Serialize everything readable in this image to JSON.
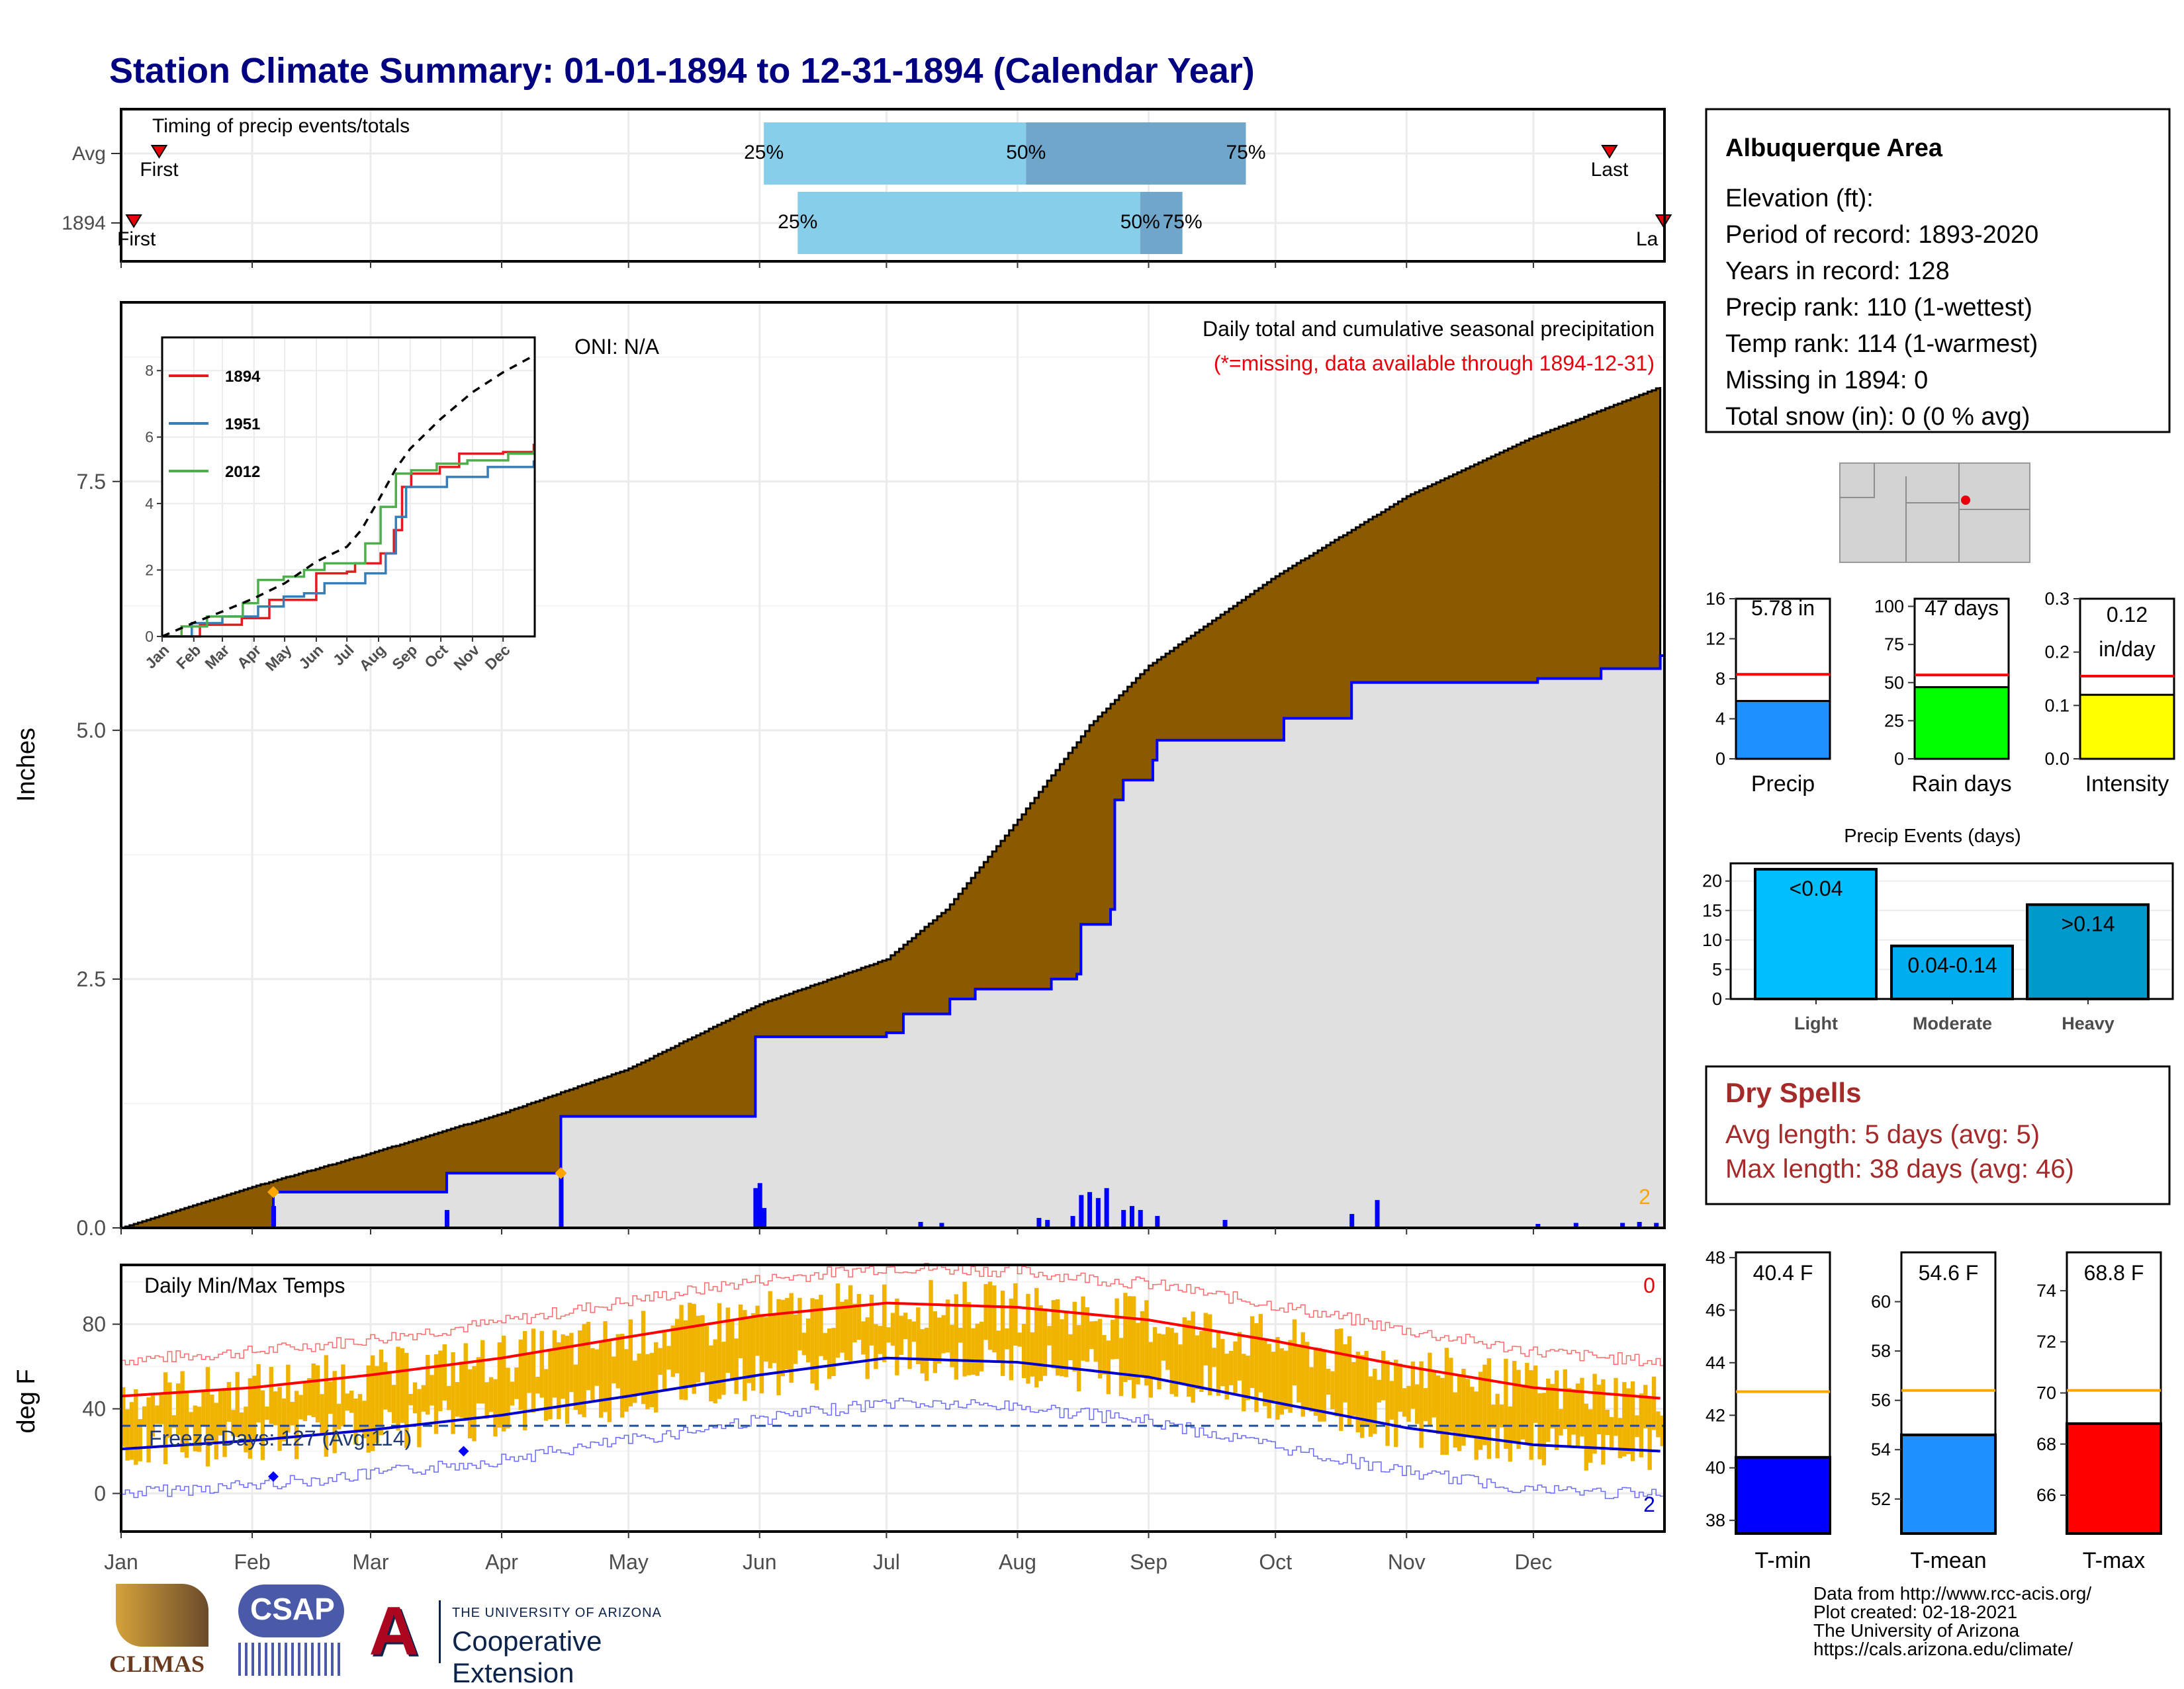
{
  "title": "Station Climate Summary: 01-01-1894 to 12-31-1894 (Calendar Year)",
  "months": [
    "Jan",
    "Feb",
    "Mar",
    "Apr",
    "May",
    "Jun",
    "Jul",
    "Aug",
    "Sep",
    "Oct",
    "Nov",
    "Dec"
  ],
  "timing": {
    "title": "Timing of precip events/totals",
    "row_labels": [
      "Avg",
      "1894"
    ],
    "first_label": "First",
    "last_label": "Last",
    "last_label_cut": "La",
    "avg": {
      "first_doy": 10,
      "p25_doy": 153,
      "p50_doy": 215,
      "p75_doy": 267,
      "last_doy": 353
    },
    "year": {
      "first_doy": 4,
      "p25_doy": 161,
      "p50_doy": 242,
      "p75_doy": 252,
      "last_doy": 365
    },
    "pct_labels": [
      "25%",
      "50%",
      "75%"
    ],
    "colors": {
      "light": "#87ceeb",
      "dark": "#6fa6c9"
    }
  },
  "station": {
    "name": "Albuquerque Area",
    "lines": [
      "Elevation (ft):",
      "Period of record: 1893-2020",
      "Years in record: 128",
      "Precip rank: 110 (1-wettest)",
      "Temp rank: 114 (1-warmest)",
      "Missing in 1894: 0",
      "Total snow (in): 0 (0 % avg)"
    ]
  },
  "dry_spells": {
    "title": "Dry Spells",
    "line1": "Avg length: 5 days (avg: 5)",
    "line2": "Max length: 38 days (avg: 46)",
    "color": "#a52a2a"
  },
  "credits": [
    "Data from http://www.rcc-acis.org/",
    "Plot created: 02-18-2021",
    "The University of Arizona",
    "https://cals.arizona.edu/climate/"
  ],
  "logos": {
    "climas": "CLIMAS",
    "csap": "CSAP",
    "ua_line1": "THE UNIVERSITY OF ARIZONA",
    "ua_line2": "Cooperative Extension"
  },
  "chart_data": [
    {
      "id": "precip-main",
      "type": "area",
      "title": "Daily total and cumulative seasonal precipitation",
      "subtitle": "(*=missing, data available through 1894-12-31)",
      "oni": "ONI: N/A",
      "ylabel": "Inches",
      "ylim": [
        0,
        9.3
      ],
      "yticks": [
        "0.0",
        "2.5",
        "5.0",
        "7.5"
      ],
      "missing_count": "2",
      "series": [
        {
          "name": "avg cumulative",
          "color": "#8b5a00",
          "x": [
            1,
            31,
            60,
            91,
            121,
            152,
            182,
            196,
            213,
            230,
            244,
            274,
            305,
            335,
            365
          ],
          "y": [
            0.0,
            0.4,
            0.75,
            1.15,
            1.6,
            2.25,
            2.7,
            3.2,
            4.1,
            5.05,
            5.65,
            6.55,
            7.35,
            7.95,
            8.45
          ]
        },
        {
          "name": "1894 cumulative",
          "color": "#0000ff",
          "x": [
            1,
            36,
            37,
            77,
            78,
            104,
            105,
            150,
            151,
            182,
            186,
            197,
            203,
            213,
            221,
            227,
            228,
            235,
            236,
            238,
            245,
            246,
            273,
            276,
            291,
            292,
            335,
            336,
            350,
            351,
            365
          ],
          "y": [
            0.0,
            0.0,
            0.36,
            0.36,
            0.55,
            0.55,
            1.12,
            1.12,
            1.92,
            1.96,
            2.15,
            2.3,
            2.4,
            2.4,
            2.5,
            2.55,
            3.05,
            3.2,
            4.3,
            4.5,
            4.7,
            4.9,
            4.9,
            5.12,
            5.12,
            5.48,
            5.48,
            5.52,
            5.52,
            5.62,
            5.75
          ]
        },
        {
          "name": "1894 daily",
          "color": "#0000ff",
          "x": [
            37,
            78,
            105,
            151,
            152,
            153,
            190,
            195,
            218,
            220,
            226,
            228,
            230,
            232,
            234,
            238,
            240,
            242,
            246,
            262,
            292,
            298,
            336,
            345,
            356,
            360,
            364
          ],
          "y": [
            0.22,
            0.18,
            0.55,
            0.4,
            0.45,
            0.2,
            0.06,
            0.05,
            0.1,
            0.08,
            0.12,
            0.33,
            0.36,
            0.3,
            0.4,
            0.18,
            0.22,
            0.18,
            0.12,
            0.08,
            0.14,
            0.28,
            0.04,
            0.05,
            0.05,
            0.06,
            0.05
          ]
        }
      ]
    },
    {
      "id": "precip-inset",
      "type": "line",
      "xlabel": "",
      "ylabel": "",
      "ylim": [
        0,
        9
      ],
      "yticks": [
        "0",
        "2",
        "4",
        "6",
        "8"
      ],
      "series": [
        {
          "name": "1894",
          "color": "#e41a1c",
          "x": [
            1,
            37,
            38,
            78,
            79,
            105,
            106,
            151,
            152,
            182,
            190,
            215,
            228,
            236,
            245,
            273,
            292,
            335,
            365
          ],
          "y": [
            0,
            0,
            0.35,
            0.35,
            0.55,
            0.55,
            1.1,
            1.1,
            1.9,
            1.95,
            2.2,
            2.5,
            3.2,
            4.5,
            4.9,
            5.1,
            5.5,
            5.55,
            5.8
          ]
        },
        {
          "name": "1951",
          "color": "#377eb8",
          "x": [
            1,
            30,
            60,
            95,
            120,
            140,
            160,
            200,
            220,
            230,
            240,
            280,
            320,
            365
          ],
          "y": [
            0,
            0.4,
            0.6,
            0.9,
            1.2,
            1.3,
            1.6,
            1.9,
            2.5,
            3.6,
            4.5,
            4.8,
            5.1,
            5.3
          ]
        },
        {
          "name": "2012",
          "color": "#4daf4a",
          "x": [
            1,
            20,
            45,
            80,
            95,
            120,
            140,
            160,
            200,
            215,
            230,
            245,
            270,
            300,
            340,
            365
          ],
          "y": [
            0,
            0.3,
            0.6,
            1.0,
            1.7,
            1.8,
            2.0,
            2.2,
            2.8,
            3.9,
            4.9,
            5.0,
            5.2,
            5.3,
            5.5,
            5.6
          ]
        },
        {
          "name": "avg",
          "color": "#000000",
          "x": [
            1,
            31,
            60,
            91,
            121,
            152,
            182,
            196,
            213,
            230,
            244,
            274,
            305,
            335,
            365
          ],
          "y": [
            0,
            0.4,
            0.75,
            1.15,
            1.6,
            2.25,
            2.7,
            3.2,
            4.1,
            5.05,
            5.65,
            6.55,
            7.35,
            7.95,
            8.45
          ]
        }
      ]
    },
    {
      "id": "temps",
      "type": "line",
      "title": "Daily Min/Max Temps",
      "ylabel": "deg F",
      "ylim": [
        -18,
        108
      ],
      "yticks": [
        "0",
        "40",
        "80"
      ],
      "freeze_label": "Freeze Days: 127 (Avg:114)",
      "freeze_level": 32,
      "count_max": "0",
      "count_min": "2",
      "avg_max": {
        "x": [
          1,
          32,
          60,
          91,
          121,
          152,
          182,
          213,
          244,
          274,
          305,
          335,
          365
        ],
        "y": [
          46,
          50,
          56,
          64,
          74,
          84,
          90,
          88,
          82,
          72,
          60,
          50,
          45
        ]
      },
      "avg_min": {
        "x": [
          1,
          32,
          60,
          91,
          121,
          152,
          182,
          213,
          244,
          274,
          305,
          335,
          365
        ],
        "y": [
          21,
          25,
          30,
          37,
          46,
          56,
          64,
          62,
          55,
          43,
          31,
          23,
          20
        ]
      }
    },
    {
      "id": "precip-bars",
      "type": "bar",
      "categories": [
        "Precip",
        "Rain days",
        "Intensity"
      ],
      "values": [
        5.78,
        47,
        0.12
      ],
      "avg": [
        8.45,
        55,
        0.155
      ],
      "labels": [
        "5.78 in",
        "47 days",
        "0.12 in/day"
      ],
      "ylim": [
        [
          0,
          16
        ],
        [
          0,
          105
        ],
        [
          0,
          0.3
        ]
      ],
      "yticks": [
        [
          "0",
          "4",
          "8",
          "12",
          "16"
        ],
        [
          "0",
          "25",
          "50",
          "75",
          "100"
        ],
        [
          "0.0",
          "0.1",
          "0.2",
          "0.3"
        ]
      ],
      "colors": [
        "#1e90ff",
        "#00ff00",
        "#ffff00"
      ]
    },
    {
      "id": "precip-events",
      "type": "bar",
      "title": "Precip Events (days)",
      "categories": [
        "Light",
        "Moderate",
        "Heavy"
      ],
      "labels": [
        "<0.04",
        "0.04-0.14",
        ">0.14"
      ],
      "values": [
        22,
        9,
        16
      ],
      "ylim": [
        0,
        23
      ],
      "yticks": [
        "0",
        "5",
        "10",
        "15",
        "20"
      ],
      "colors": [
        "#00bfff",
        "#00aeef",
        "#0099cc"
      ]
    },
    {
      "id": "temp-bars",
      "type": "bar",
      "categories": [
        "T-min",
        "T-mean",
        "T-max"
      ],
      "values": [
        40.4,
        54.6,
        68.8
      ],
      "avg": [
        42.9,
        56.4,
        70.1
      ],
      "labels": [
        "40.4 F",
        "54.6 F",
        "68.8 F"
      ],
      "ylim": [
        [
          37.5,
          48.2
        ],
        [
          50.6,
          62.0
        ],
        [
          64.5,
          75.5
        ]
      ],
      "yticks": [
        [
          "38",
          "40",
          "42",
          "44",
          "46",
          "48"
        ],
        [
          "52",
          "54",
          "56",
          "58",
          "60"
        ],
        [
          "66",
          "68",
          "70",
          "72",
          "74"
        ]
      ],
      "colors": [
        "#0000ff",
        "#1e90ff",
        "#ff0000"
      ]
    }
  ]
}
